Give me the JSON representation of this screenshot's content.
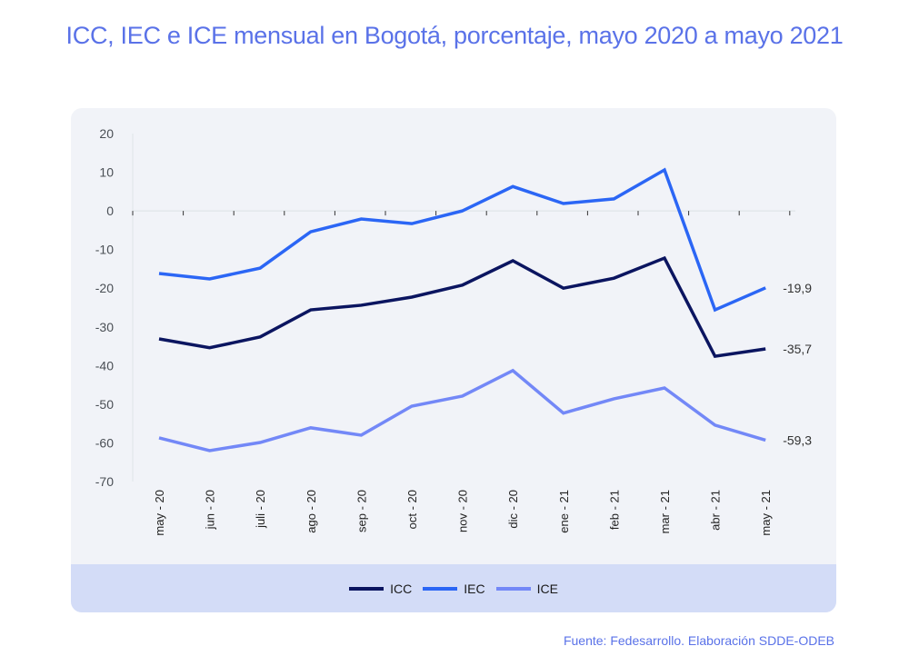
{
  "title": "ICC, IEC e ICE mensual en Bogotá, porcentaje, mayo 2020 a mayo 2021",
  "source": "Fuente: Fedesarrollo. Elaboración SDDE-ODEB",
  "chart_data": {
    "type": "line",
    "title": "ICC, IEC e ICE mensual en Bogotá, porcentaje, mayo 2020 a mayo 2021",
    "xlabel": "",
    "ylabel": "",
    "ylim": [
      -70,
      20
    ],
    "yticks": [
      20,
      10,
      0,
      -10,
      -20,
      -30,
      -40,
      -50,
      -60,
      -70
    ],
    "grid": false,
    "legend_position": "bottom",
    "categories": [
      "may - 20",
      "jun - 20",
      "juli - 20",
      "ago - 20",
      "sep - 20",
      "oct - 20",
      "nov - 20",
      "dic - 20",
      "ene - 21",
      "feb - 21",
      "mar - 21",
      "abr - 21",
      "may - 21"
    ],
    "series": [
      {
        "name": "ICC",
        "color": "#0b1560",
        "values": [
          -33.1,
          -35.4,
          -32.6,
          -25.6,
          -24.4,
          -22.3,
          -19.2,
          -12.9,
          -20.0,
          -17.4,
          -12.2,
          -37.6,
          -35.7
        ],
        "end_label": "-35,7"
      },
      {
        "name": "IEC",
        "color": "#2b66f5",
        "values": [
          -16.2,
          -17.6,
          -14.8,
          -5.4,
          -2.1,
          -3.3,
          0.0,
          6.3,
          1.9,
          3.1,
          10.6,
          -25.6,
          -19.9
        ],
        "end_label": "-19,9"
      },
      {
        "name": "ICE",
        "color": "#7388f7",
        "values": [
          -58.7,
          -62.0,
          -59.9,
          -56.1,
          -58.0,
          -50.5,
          -47.9,
          -41.3,
          -52.3,
          -48.6,
          -45.8,
          -55.4,
          -59.3
        ],
        "end_label": "-59,3"
      }
    ]
  }
}
